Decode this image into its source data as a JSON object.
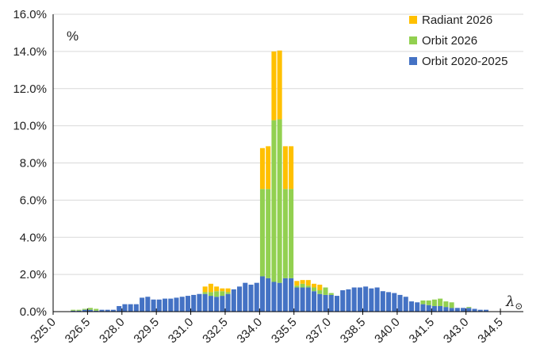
{
  "chart_data": {
    "type": "bar",
    "stacked": true,
    "unit_label": "%",
    "x_axis_label": "λ",
    "x_axis_label_subscript": "⊙",
    "xlim": [
      325.0,
      345.5
    ],
    "ylim": [
      0,
      16
    ],
    "bin_width": 0.25,
    "x_ticks": [
      "325.0",
      "326.5",
      "328.0",
      "329.5",
      "331.0",
      "332.5",
      "334.0",
      "335.5",
      "337.0",
      "338.5",
      "340.0",
      "341.5",
      "343.0",
      "344.5"
    ],
    "y_ticks": [
      "0.0%",
      "2.0%",
      "4.0%",
      "6.0%",
      "8.0%",
      "10.0%",
      "12.0%",
      "14.0%",
      "16.0%"
    ],
    "legend": {
      "placement": "top-right",
      "entries": [
        "Radiant 2026",
        "Orbit 2026",
        "Orbit 2020-2025"
      ]
    },
    "colors": {
      "Radiant 2026": "#ffc000",
      "Orbit 2026": "#92d050",
      "Orbit 2020-2025": "#4472c4"
    },
    "x": [
      325.875,
      326.125,
      326.375,
      326.625,
      326.875,
      327.125,
      327.375,
      327.625,
      327.875,
      328.125,
      328.375,
      328.625,
      328.875,
      329.125,
      329.375,
      329.625,
      329.875,
      330.125,
      330.375,
      330.625,
      330.875,
      331.125,
      331.375,
      331.625,
      331.875,
      332.125,
      332.375,
      332.625,
      332.875,
      333.125,
      333.375,
      333.625,
      333.875,
      334.125,
      334.375,
      334.625,
      334.875,
      335.125,
      335.375,
      335.625,
      335.875,
      336.125,
      336.375,
      336.625,
      336.875,
      337.125,
      337.375,
      337.625,
      337.875,
      338.125,
      338.375,
      338.625,
      338.875,
      339.125,
      339.375,
      339.625,
      339.875,
      340.125,
      340.375,
      340.625,
      340.875,
      341.125,
      341.375,
      341.625,
      341.875,
      342.125,
      342.375,
      342.625,
      342.875,
      343.125,
      343.375,
      343.625,
      343.875
    ],
    "series": [
      {
        "name": "Orbit 2020-2025",
        "values": [
          0.05,
          0.05,
          0.1,
          0.1,
          0.05,
          0.1,
          0.1,
          0.1,
          0.3,
          0.4,
          0.4,
          0.4,
          0.75,
          0.8,
          0.65,
          0.65,
          0.7,
          0.7,
          0.75,
          0.8,
          0.85,
          0.9,
          0.95,
          0.95,
          0.85,
          0.8,
          0.85,
          0.95,
          1.2,
          1.35,
          1.55,
          1.45,
          1.55,
          1.9,
          1.8,
          1.6,
          1.55,
          1.8,
          1.8,
          1.3,
          1.3,
          1.3,
          1.1,
          0.95,
          0.9,
          0.9,
          0.85,
          1.15,
          1.2,
          1.3,
          1.3,
          1.35,
          1.25,
          1.3,
          1.1,
          1.05,
          1.0,
          0.9,
          0.8,
          0.55,
          0.5,
          0.4,
          0.35,
          0.3,
          0.3,
          0.25,
          0.2,
          0.2,
          0.2,
          0.2,
          0.15,
          0.1,
          0.1
        ]
      },
      {
        "name": "Orbit 2026",
        "values": [
          0.05,
          0.05,
          0.05,
          0.1,
          0.1,
          0,
          0,
          0,
          0,
          0,
          0,
          0,
          0,
          0,
          0,
          0,
          0,
          0,
          0,
          0,
          0,
          0,
          0,
          0.1,
          0.2,
          0.3,
          0.25,
          0.1,
          0,
          0,
          0,
          0,
          0,
          4.7,
          4.8,
          8.7,
          8.8,
          4.8,
          4.8,
          0.1,
          0.2,
          0.1,
          0.2,
          0.2,
          0.4,
          0.1,
          0,
          0,
          0,
          0,
          0,
          0,
          0,
          0,
          0,
          0,
          0,
          0,
          0,
          0,
          0,
          0.2,
          0.25,
          0.35,
          0.4,
          0.3,
          0.3,
          0,
          0,
          0.05,
          0,
          0,
          0
        ]
      },
      {
        "name": "Radiant 2026",
        "values": [
          0,
          0,
          0,
          0,
          0,
          0,
          0,
          0,
          0,
          0,
          0,
          0,
          0,
          0,
          0,
          0,
          0,
          0,
          0,
          0,
          0,
          0,
          0,
          0.3,
          0.45,
          0.25,
          0.15,
          0.2,
          0,
          0,
          0,
          0,
          0,
          2.2,
          2.3,
          3.7,
          3.7,
          2.3,
          2.3,
          0.25,
          0.2,
          0.3,
          0.2,
          0.3,
          0,
          0,
          0,
          0,
          0,
          0,
          0,
          0,
          0,
          0,
          0,
          0,
          0,
          0,
          0,
          0,
          0,
          0,
          0,
          0,
          0,
          0,
          0,
          0,
          0,
          0,
          0,
          0,
          0
        ]
      }
    ]
  }
}
